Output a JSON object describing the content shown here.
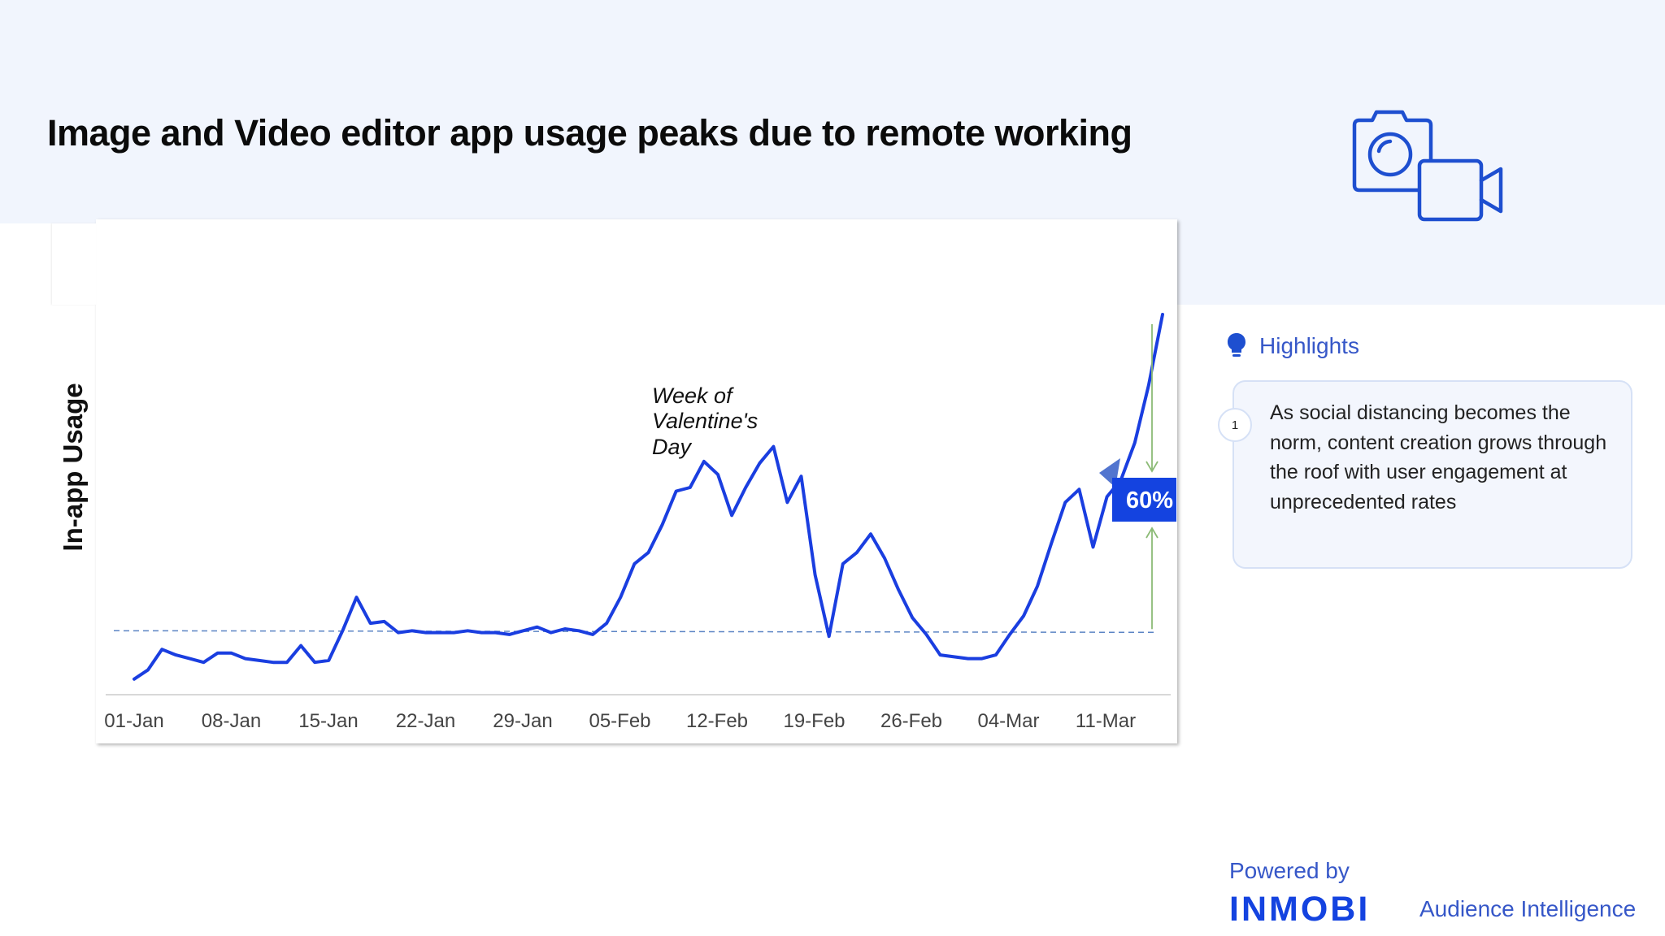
{
  "header": {
    "title": "Image and Video editor app usage peaks due to remote working"
  },
  "icons": {
    "header_icon": "camera-video-icon",
    "highlights_icon": "lightbulb-icon"
  },
  "colors": {
    "line": "#1a3ee0",
    "accent": "#1443e0",
    "baseline": "#5b84c4",
    "arrow": "#8cbb76",
    "text_blue": "#3657c8"
  },
  "chart_data": {
    "type": "line",
    "title": "Image and Video editor app usage peaks due to remote working",
    "ylabel": "In-app Usage",
    "xlabel": "",
    "x_tick_labels": [
      "01-Jan",
      "08-Jan",
      "15-Jan",
      "22-Jan",
      "29-Jan",
      "05-Feb",
      "12-Feb",
      "19-Feb",
      "26-Feb",
      "04-Mar",
      "11-Mar"
    ],
    "y_axis_shown": false,
    "grid": false,
    "ylim": [
      0,
      100
    ],
    "baseline_value": 15,
    "series": [
      {
        "values": [
          2.0,
          4.5,
          10.0,
          8.5,
          7.5,
          6.5,
          9.0,
          9.0,
          7.5,
          7.0,
          6.5,
          6.5,
          11.0,
          6.5,
          7.0,
          15.0,
          24.0,
          17.0,
          17.5,
          14.5,
          15.0,
          14.5,
          14.5,
          14.5,
          15.0,
          14.5,
          14.5,
          14.0,
          15.0,
          16.0,
          14.5,
          15.5,
          15.0,
          14.0,
          17.0,
          24.0,
          33.0,
          36.0,
          43.5,
          52.5,
          53.5,
          60.5,
          57.0,
          46.0,
          53.5,
          60.0,
          64.5,
          49.5,
          56.5,
          30.0,
          13.5,
          33.0,
          36.0,
          41.0,
          34.5,
          26.0,
          18.5,
          14.0,
          8.5,
          8.0,
          7.5,
          7.5,
          8.5,
          14.0,
          19.0,
          27.0,
          38.5,
          49.5,
          53.0,
          37.5,
          51.0,
          55.5,
          65.5,
          81.0,
          100.0
        ]
      }
    ],
    "annotations": [
      {
        "text": "Week of Valentine's Day",
        "lines": [
          "Week of",
          "Valentine's",
          "Day"
        ]
      },
      {
        "text": "60%",
        "style": "badge"
      }
    ]
  },
  "highlights": {
    "title": "Highlights",
    "items": [
      {
        "number": "1",
        "text": "As social distancing becomes the norm, content creation grows through the roof with user engagement at unprecedented rates"
      }
    ]
  },
  "footer": {
    "powered_by": "Powered by",
    "brand": "INMOBI",
    "tagline": "Audience Intelligence"
  }
}
